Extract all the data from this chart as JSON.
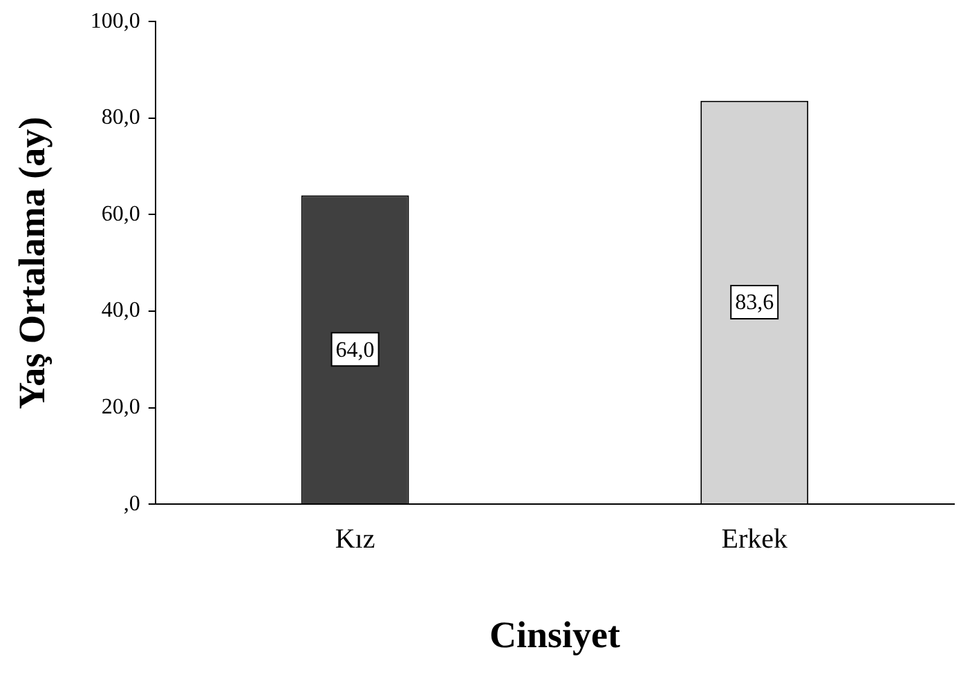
{
  "chart_data": {
    "type": "bar",
    "xlabel": "Cinsiyet",
    "ylabel": "Yaş Ortalama (ay)",
    "categories": [
      "Kız",
      "Erkek"
    ],
    "values": [
      64.0,
      83.6
    ],
    "colors": [
      "#404040",
      "#d3d3d3"
    ],
    "value_labels": [
      "64,0",
      "83,6"
    ],
    "ylim": [
      0,
      100
    ],
    "yticks": [
      {
        "value": 0,
        "label": ",0"
      },
      {
        "value": 20,
        "label": "20,0"
      },
      {
        "value": 40,
        "label": "40,0"
      },
      {
        "value": 60,
        "label": "60,0"
      },
      {
        "value": 80,
        "label": "80,0"
      },
      {
        "value": 100,
        "label": "100,0"
      }
    ],
    "grid": false,
    "legend": false
  }
}
